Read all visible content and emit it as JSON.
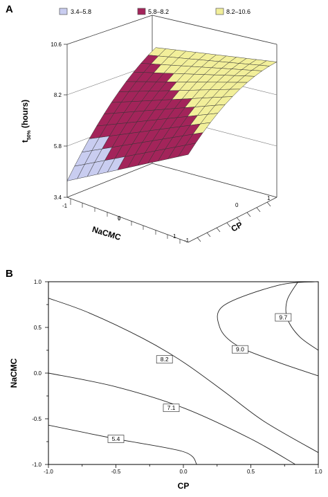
{
  "chart_data": [
    {
      "panel": "A",
      "type": "surface",
      "legend": [
        {
          "label": "3.4–5.8",
          "color": "#c9cdf0"
        },
        {
          "label": "5.8–8.2",
          "color": "#a3245a"
        },
        {
          "label": "8.2–10.6",
          "color": "#f2ef9a"
        }
      ],
      "zlabel": "t",
      "zlabel_sub": "50%",
      "zlabel_unit": "(hours)",
      "xlabel": "NaCMC",
      "ylabel": "CP",
      "zticks": [
        "3.4",
        "5.8",
        "8.2",
        "10.6"
      ],
      "xticks": [
        "-1",
        "0",
        "1"
      ],
      "yticks": [
        "-1",
        "0",
        "1"
      ],
      "zlim": [
        3.4,
        10.6
      ],
      "xlim": [
        -1,
        1
      ],
      "ylim": [
        -1,
        1
      ]
    },
    {
      "panel": "B",
      "type": "contour",
      "xlabel": "CP",
      "ylabel": "NaCMC",
      "xticks": [
        "-1.0",
        "-0.5",
        "0.0",
        "0.5",
        "1.0"
      ],
      "yticks": [
        "1.0",
        "0.5",
        "0.0",
        "-0.5",
        "-1.0"
      ],
      "xlim": [
        -1,
        1
      ],
      "ylim": [
        -1,
        1
      ],
      "contours": [
        {
          "level": "5.4",
          "points": [
            [
              -1.0,
              -0.57
            ],
            [
              -0.5,
              -0.72
            ],
            [
              0.0,
              -0.86
            ],
            [
              0.1,
              -1.0
            ]
          ],
          "label_at": [
            -0.5,
            -0.72
          ]
        },
        {
          "level": "7.1",
          "points": [
            [
              -1.0,
              0.0
            ],
            [
              -0.5,
              -0.15
            ],
            [
              0.0,
              -0.38
            ],
            [
              0.5,
              -0.72
            ],
            [
              0.83,
              -1.0
            ]
          ],
          "label_at": [
            -0.09,
            -0.38
          ]
        },
        {
          "level": "8.2",
          "points": [
            [
              -1.0,
              0.82
            ],
            [
              -0.7,
              0.66
            ],
            [
              -0.3,
              0.38
            ],
            [
              0.0,
              0.12
            ],
            [
              0.3,
              -0.2
            ],
            [
              0.6,
              -0.53
            ],
            [
              1.0,
              -0.87
            ]
          ],
          "label_at": [
            -0.14,
            0.15
          ]
        },
        {
          "level": "9.0",
          "points": [
            [
              0.98,
              1.0
            ],
            [
              0.7,
              0.96
            ],
            [
              0.3,
              0.74
            ],
            [
              0.27,
              0.5
            ],
            [
              0.4,
              0.3
            ],
            [
              0.7,
              0.12
            ],
            [
              1.0,
              -0.03
            ]
          ],
          "label_at": [
            0.42,
            0.26
          ]
        },
        {
          "level": "9.7",
          "points": [
            [
              0.85,
              1.0
            ],
            [
              0.77,
              0.8
            ],
            [
              0.77,
              0.6
            ],
            [
              0.86,
              0.4
            ],
            [
              1.0,
              0.25
            ]
          ],
          "label_at": [
            0.74,
            0.61
          ]
        }
      ]
    }
  ]
}
